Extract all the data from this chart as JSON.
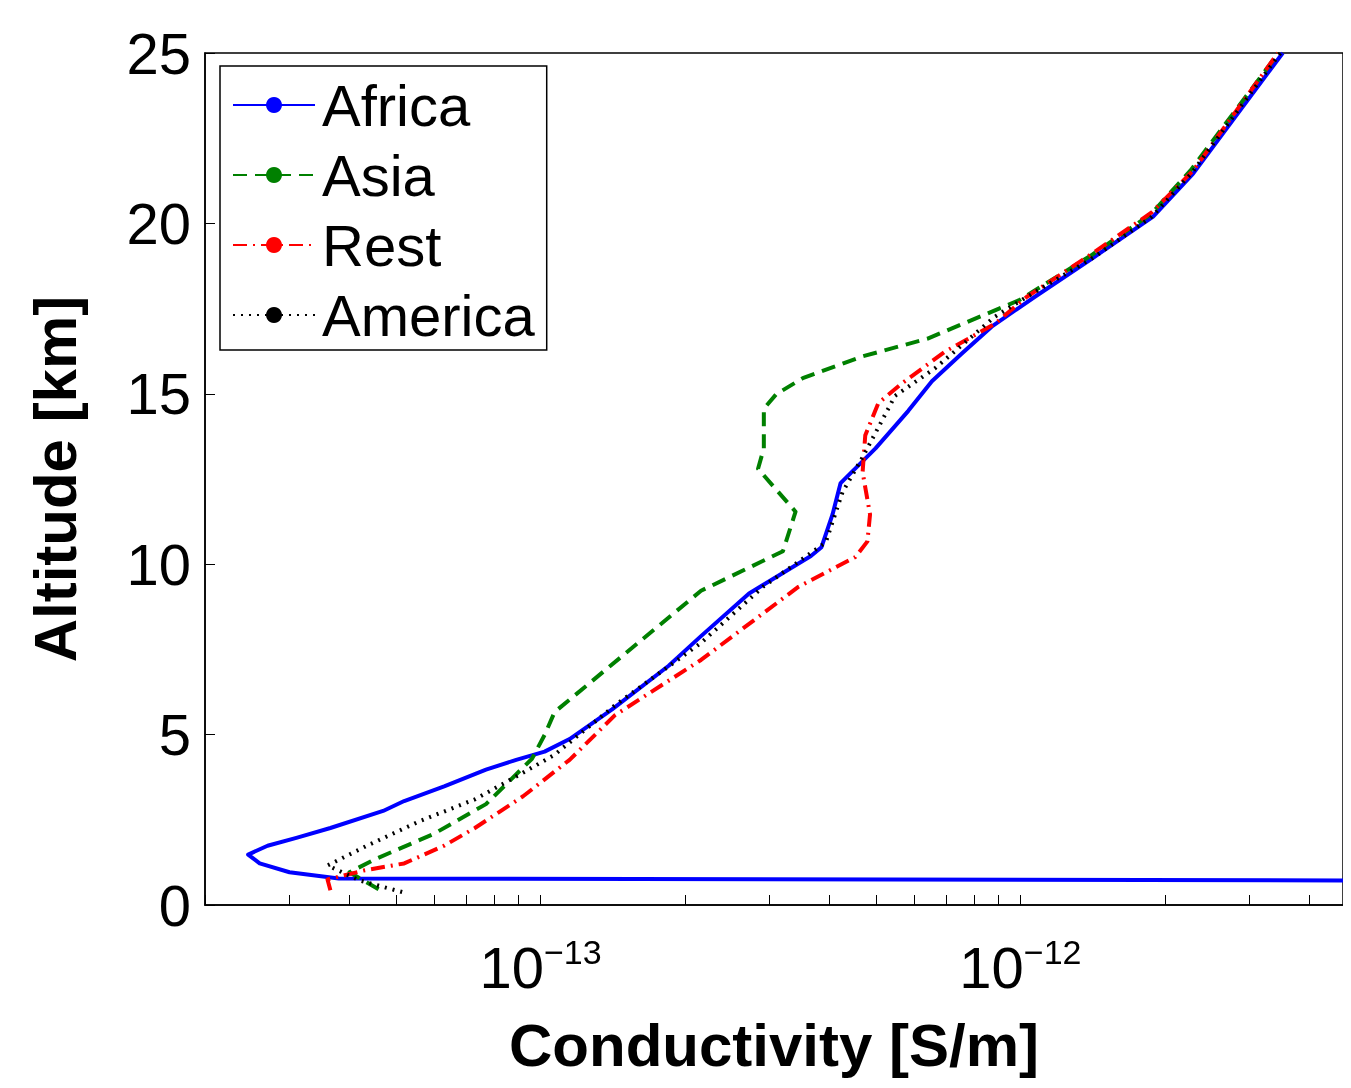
{
  "chart_data": {
    "type": "line",
    "xlabel": "Conductivity [S/m]",
    "ylabel": "Altitude [km]",
    "log": "x",
    "xlim": [
      2e-14,
      4.7e-12
    ],
    "ylim": [
      0,
      25
    ],
    "xticks": [
      {
        "value": 2e-14,
        "label": null
      },
      {
        "value": 3e-14,
        "label": null
      },
      {
        "value": 4e-14,
        "label": null
      },
      {
        "value": 5e-14,
        "label": null
      },
      {
        "value": 6e-14,
        "label": null
      },
      {
        "value": 7e-14,
        "label": null
      },
      {
        "value": 8e-14,
        "label": null
      },
      {
        "value": 9e-14,
        "label": null
      },
      {
        "value": 1e-13,
        "label": "10$^{−13}$"
      },
      {
        "value": 2e-13,
        "label": null
      },
      {
        "value": 3e-13,
        "label": null
      },
      {
        "value": 4e-13,
        "label": null
      },
      {
        "value": 5e-13,
        "label": null
      },
      {
        "value": 6e-13,
        "label": null
      },
      {
        "value": 7e-13,
        "label": null
      },
      {
        "value": 8e-13,
        "label": null
      },
      {
        "value": 9e-13,
        "label": null
      },
      {
        "value": 1e-12,
        "label": "10$^{−12}$"
      },
      {
        "value": 2e-12,
        "label": null
      },
      {
        "value": 3e-12,
        "label": null
      },
      {
        "value": 4e-12,
        "label": null
      }
    ],
    "yticks": [
      0,
      5,
      10,
      15,
      20,
      25
    ],
    "grid": false,
    "legend": "top left",
    "marker": "none",
    "series": [
      {
        "name": "Africa",
        "color": "#0000ff",
        "line_style": "solid",
        "x": [
          4.7e-12,
          3.8e-14,
          3e-14,
          2.6e-14,
          2.46e-14,
          2.7e-14,
          3.1e-14,
          3.65e-14,
          4.7e-14,
          5.2e-14,
          6.3e-14,
          7.7e-14,
          8.9e-14,
          1.02e-13,
          1.15e-13,
          1.41e-13,
          1.85e-13,
          2.16e-13,
          2.72e-13,
          3.66e-13,
          3.85e-13,
          4.06e-13,
          4.22e-13,
          4.99e-13,
          5.84e-13,
          6.54e-13,
          7.55e-13,
          8.71e-13,
          1.07e-12,
          1.42e-12,
          1.89e-12,
          2.29e-12,
          3.52e-12
        ],
        "values": [
          0.72,
          0.78,
          0.96,
          1.22,
          1.48,
          1.74,
          1.97,
          2.26,
          2.76,
          3.05,
          3.48,
          3.97,
          4.26,
          4.5,
          4.87,
          5.74,
          7.02,
          7.89,
          9.14,
          10.24,
          10.5,
          11.46,
          12.38,
          13.4,
          14.5,
          15.37,
          16.18,
          16.97,
          17.84,
          19.0,
          20.2,
          21.46,
          25.0
        ]
      },
      {
        "name": "Asia",
        "color": "#008000",
        "line_style": "dashed",
        "x": [
          4.6e-14,
          4e-14,
          4.55e-14,
          6e-14,
          7.7e-14,
          9.6e-14,
          1.02e-13,
          1.07e-13,
          2.16e-13,
          3.2e-13,
          3.4e-13,
          2.84e-13,
          2.92e-13,
          2.92e-13,
          3.1e-13,
          3.52e-13,
          4.69e-13,
          6.41e-13,
          9.95e-13,
          1.4e-12,
          1.87e-12,
          2.26e-12,
          3.45e-12
        ],
        "values": [
          0.46,
          0.96,
          1.36,
          2.09,
          2.96,
          4.29,
          4.99,
          5.66,
          9.22,
          10.38,
          11.54,
          12.8,
          13.4,
          14.56,
          14.99,
          15.46,
          16.1,
          16.62,
          17.75,
          19.05,
          20.27,
          21.55,
          25.0
        ]
      },
      {
        "name": "Rest",
        "color": "#ff0000",
        "line_style": "dashdot",
        "x": [
          3.65e-14,
          3.6e-14,
          4.28e-14,
          5.2e-14,
          6.3e-14,
          7.3e-14,
          9.2e-14,
          1.15e-13,
          1.43e-13,
          2.16e-13,
          3.45e-13,
          4.53e-13,
          4.8e-13,
          4.86e-13,
          4.69e-13,
          4.75e-13,
          5.06e-13,
          5.67e-13,
          6.97e-13,
          8.84e-13,
          1.03e-12,
          1.42e-12,
          1.88e-12,
          2.29e-12,
          3.44e-12
        ],
        "values": [
          0.43,
          0.75,
          1.01,
          1.22,
          1.74,
          2.26,
          3.19,
          4.26,
          5.57,
          7.19,
          9.34,
          10.21,
          10.67,
          11.46,
          12.7,
          13.78,
          14.73,
          15.31,
          16.24,
          17.05,
          17.84,
          19.14,
          20.33,
          21.55,
          25.0
        ]
      },
      {
        "name": "America",
        "color": "#000000",
        "line_style": "dotted",
        "x": [
          5.15e-14,
          4.2e-14,
          3.6e-14,
          4.35e-14,
          5.6e-14,
          7.3e-14,
          9.3e-14,
          1.07e-13,
          1.43e-13,
          2.16e-13,
          2.91e-13,
          3.93e-13,
          4.26e-13,
          4.69e-13,
          5.48e-13,
          6.64e-13,
          8.84e-13,
          1.03e-12,
          1.42e-12,
          1.88e-12,
          2.28e-12,
          3.48e-12
        ],
        "values": [
          0.38,
          0.72,
          1.16,
          1.74,
          2.46,
          3.1,
          3.92,
          4.41,
          5.86,
          7.69,
          9.34,
          10.64,
          12.12,
          13.14,
          14.94,
          15.75,
          17.26,
          17.84,
          19.0,
          20.2,
          21.5,
          25.0
        ]
      }
    ]
  }
}
